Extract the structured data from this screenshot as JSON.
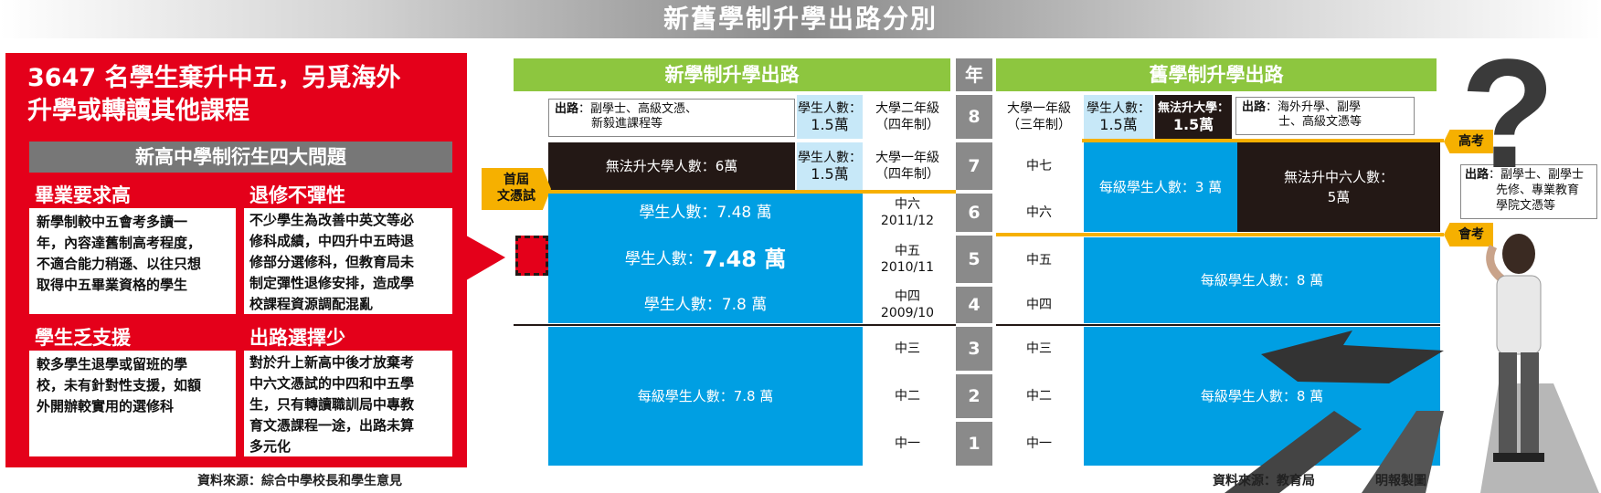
{
  "title": "新舊學制升學出路分別",
  "left": {
    "headline_1": "3647 名學生棄升中五，另覓海外",
    "headline_2": "升學或轉讀其他課程",
    "section_title": "新高中學制衍生四大問題",
    "problems": [
      {
        "title": "畢業要求高",
        "lines": [
          "新學制較中五會考多讀一",
          "年，內容達舊制高考程度，",
          "不適合能力稍遜、以往只想",
          "取得中五畢業資格的學生"
        ]
      },
      {
        "title": "退修不彈性",
        "lines": [
          "不少學生為改善中英文等必",
          "修科成績，中四升中五時退",
          "修部分選修科，但教育局未",
          "制定彈性退修安排，造成學",
          "校課程資源調配混亂"
        ]
      },
      {
        "title": "學生乏支援",
        "lines": [
          "較多學生退學或留班的學",
          "校，未有針對性支援，如額",
          "外開辦較實用的選修科"
        ]
      },
      {
        "title": "出路選擇少",
        "lines": [
          "對於升上新高中後才放棄考",
          "中六文憑試的中四和中五學",
          "生，只有轉讀職訓局中專教",
          "育文憑課程一途，出路未算",
          "多元化"
        ]
      }
    ],
    "source": "資料來源：綜合中學校長和學生意見"
  },
  "right": {
    "new_header": "新學制升學出路",
    "year_header": "年",
    "old_header": "舊學制升學出路",
    "years": [
      "8",
      "7",
      "6",
      "5",
      "4",
      "3",
      "2",
      "1"
    ],
    "new_outlet_label": "出路",
    "new_outlet_text": "：副學士、高級文憑、",
    "new_outlet_text2": "新毅進課程等",
    "new_count_8": [
      "學生人數：",
      "1.5萬"
    ],
    "new_grade_8": [
      "大學二年級",
      "（四年制）"
    ],
    "new_no_uni": "無法升大學人數：6萬",
    "new_count_7": [
      "學生人數：",
      "1.5萬"
    ],
    "new_grade_7": [
      "大學一年級",
      "（四年制）"
    ],
    "first_exam": [
      "首屆",
      "文憑試"
    ],
    "new_students_6": "學生人數：7.48 萬",
    "new_grade_6": [
      "中六",
      "2011/12"
    ],
    "new_students_5_label": "學生人數：",
    "new_students_5_value": "7.48 萬",
    "new_grade_5": [
      "中五",
      "2010/11"
    ],
    "new_students_4": "學生人數：7.8 萬",
    "new_grade_4": [
      "中四",
      "2009/10"
    ],
    "new_students_junior": "每級學生人數：7.8 萬",
    "new_grade_3": "中三",
    "new_grade_2": "中二",
    "new_grade_1": "中一",
    "old_grade_8": [
      "大學一年級",
      "（三年制）"
    ],
    "old_count_8": [
      "學生人數：",
      "1.5萬"
    ],
    "old_no_uni": [
      "無法升大學：",
      "1.5萬"
    ],
    "old_outlet_label": "出路",
    "old_outlet_text": "：海外升學、副學",
    "old_outlet_text2": "士、高級文憑等",
    "old_grade_7": "中七",
    "old_grade_6": "中六",
    "old_students_67": "每級學生人數：3 萬",
    "old_no_f6": [
      "無法升中六人數：",
      "5萬"
    ],
    "old_grade_5": "中五",
    "old_grade_4": "中四",
    "old_students_senior": "每級學生人數：8 萬",
    "old_grade_3": "中三",
    "old_grade_2": "中二",
    "old_grade_1": "中一",
    "old_students_junior": "每級學生人數：8 萬",
    "flag_alevel": "高考",
    "flag_cee": "會考",
    "side_outlet_label": "出路",
    "side_outlet_text": [
      "：副學士、副學士",
      "先修、專業教育",
      "學院文憑等"
    ],
    "question_mark": "?",
    "source": "資料來源：教育局",
    "credit": "明報製圖"
  }
}
